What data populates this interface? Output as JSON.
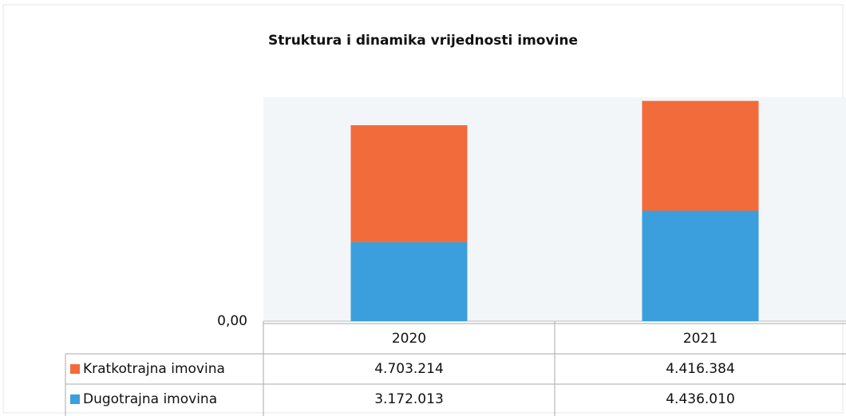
{
  "chart_data": {
    "type": "stacked_bar",
    "title": "Struktura i dinamika vrijednosti imovine",
    "categories": [
      "2020",
      "2021"
    ],
    "series": [
      {
        "name": "Kratkotrajna imovina",
        "color": "#f26b3a",
        "values": [
          4703214,
          4416384
        ],
        "value_labels": [
          "4.703.214",
          "4.416.384"
        ]
      },
      {
        "name": "Dugotrajna imovina",
        "color": "#3a9fdc",
        "values": [
          3172013,
          4436010
        ],
        "value_labels": [
          "3.172.013",
          "4.436.010"
        ]
      }
    ],
    "stack_order": [
      1,
      0
    ],
    "ylim": [
      0,
      9000000
    ],
    "yticks": [
      {
        "value": 0,
        "label": "0,00"
      }
    ]
  }
}
